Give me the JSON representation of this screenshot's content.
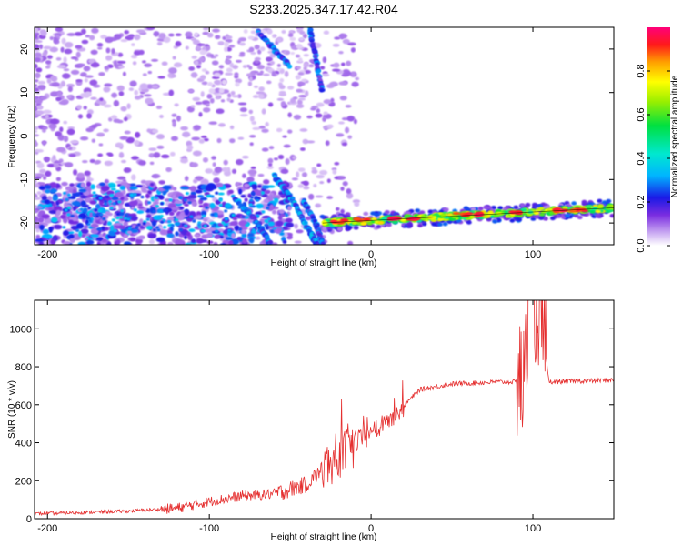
{
  "title": "S233.2025.347.17.42.R04",
  "chart_data": [
    {
      "type": "heatmap",
      "xlabel": "Height of straight line (km)",
      "ylabel": "Frequency (Hz)",
      "xlim": [
        -208,
        150
      ],
      "ylim": [
        -25,
        25
      ],
      "xticks": [
        -200,
        -100,
        0,
        100
      ],
      "yticks": [
        -20,
        -10,
        0,
        10,
        20
      ],
      "colorbar": {
        "label": "Normalized spectral amplitude",
        "range": [
          0.0,
          1.0
        ],
        "ticks": [
          0.0,
          0.2,
          0.4,
          0.6,
          0.8
        ],
        "tick_labels": [
          "0.0",
          "0.2",
          "0.4",
          "0.6",
          "0.8"
        ]
      },
      "features": {
        "main_band": {
          "x_start": -30,
          "x_end": 150,
          "y_start": -20,
          "y_end": -16.5,
          "peak_amplitude": 0.95
        },
        "curved_streaks": [
          {
            "points": [
              [
                -85,
                -14
              ],
              [
                -70,
                -20
              ],
              [
                -62,
                -25
              ]
            ]
          },
          {
            "points": [
              [
                -60,
                -9
              ],
              [
                -50,
                -14
              ],
              [
                -38,
                -22
              ],
              [
                -33,
                -25
              ]
            ]
          },
          {
            "points": [
              [
                -42,
                -15
              ],
              [
                -34,
                -20
              ],
              [
                -30,
                -25
              ]
            ]
          },
          {
            "points": [
              [
                -70,
                24
              ],
              [
                -60,
                20
              ],
              [
                -50,
                16
              ]
            ]
          },
          {
            "points": [
              [
                -38,
                25
              ],
              [
                -34,
                18
              ],
              [
                -30,
                10
              ]
            ]
          }
        ]
      }
    },
    {
      "type": "line",
      "xlabel": "Height of straight line (km)",
      "ylabel": "SNR (10 * v/v)",
      "xlim": [
        -208,
        150
      ],
      "ylim": [
        0,
        1150
      ],
      "xticks": [
        -200,
        -100,
        0,
        100
      ],
      "yticks": [
        0,
        200,
        400,
        600,
        800,
        1000
      ],
      "color": "#e53030",
      "series_profile": [
        {
          "x": -208,
          "y": 25
        },
        {
          "x": -150,
          "y": 40
        },
        {
          "x": -120,
          "y": 55
        },
        {
          "x": -100,
          "y": 90
        },
        {
          "x": -80,
          "y": 120
        },
        {
          "x": -60,
          "y": 130
        },
        {
          "x": -40,
          "y": 180
        },
        {
          "x": -25,
          "y": 300
        },
        {
          "x": -10,
          "y": 400
        },
        {
          "x": 0,
          "y": 450
        },
        {
          "x": 15,
          "y": 550
        },
        {
          "x": 30,
          "y": 680
        },
        {
          "x": 50,
          "y": 710
        },
        {
          "x": 80,
          "y": 720
        },
        {
          "x": 95,
          "y": 720
        },
        {
          "x": 97,
          "y": 1150
        },
        {
          "x": 104,
          "y": 1120
        },
        {
          "x": 110,
          "y": 720
        },
        {
          "x": 150,
          "y": 730
        }
      ]
    }
  ]
}
